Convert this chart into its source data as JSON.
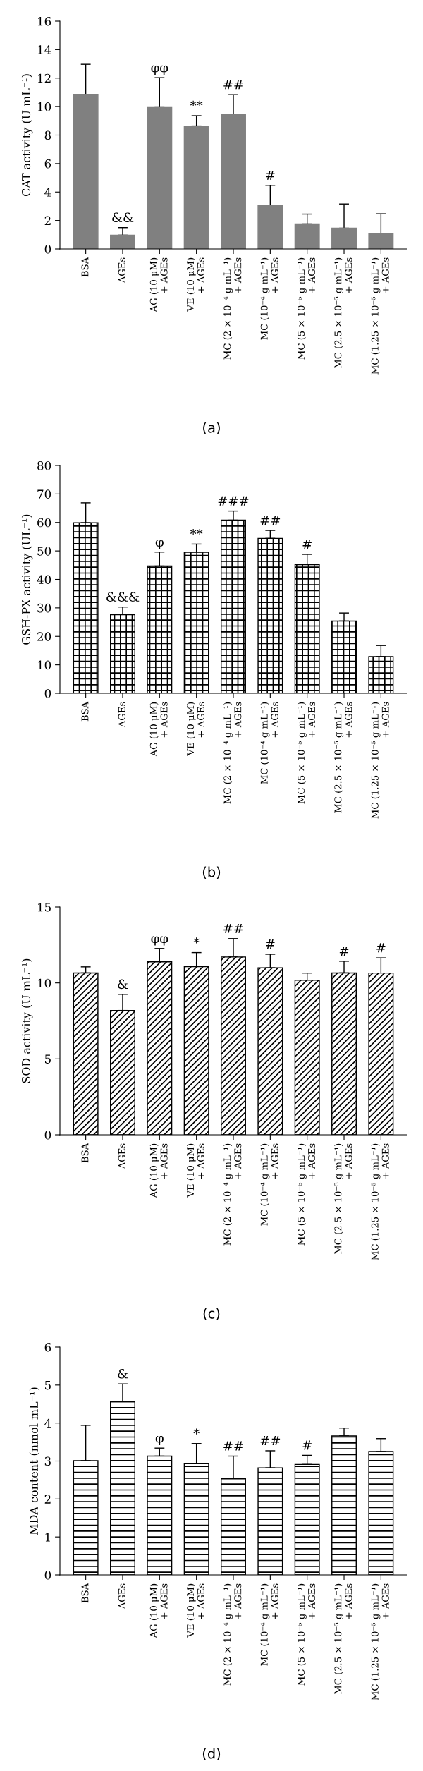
{
  "chart_data": [
    {
      "type": "bar",
      "title": "(a)",
      "ylabel": "CAT activity (U mL⁻¹)",
      "categories": [
        "BSA",
        "AGEs",
        "AG (10 μM)\n+ AGEs",
        "VE (10 μM)\n+ AGEs",
        "MC (2 × 10⁻⁴ g mL⁻¹)\n+ AGEs",
        "MC (10⁻⁴ g mL⁻¹)\n+ AGEs",
        "MC (5 × 10⁻⁵ g mL⁻¹)\n+ AGEs",
        "MC (2.5 × 10⁻⁵ g mL⁻¹)\n+ AGEs",
        "MC (1.25 × 10⁻⁵ g mL⁻¹)\n+ AGEs"
      ],
      "values": [
        10.86,
        0.97,
        9.93,
        8.64,
        9.45,
        3.07,
        1.76,
        1.46,
        1.09
      ],
      "color": "#808080",
      "errors": [
        [
          10.86,
          12.97
        ],
        [
          0.97,
          1.5
        ],
        [
          9.93,
          12.03
        ],
        [
          8.64,
          9.36
        ],
        [
          9.45,
          10.84
        ],
        [
          3.07,
          4.47
        ],
        [
          1.76,
          2.45
        ],
        [
          1.46,
          3.16
        ],
        [
          1.09,
          2.47
        ]
      ],
      "ylim": [
        0,
        16
      ],
      "yticks": [
        0,
        2,
        4,
        6,
        8,
        10,
        12,
        14,
        16
      ],
      "grid": false,
      "legend": false,
      "annotations": [
        {
          "text": "&&",
          "x": "AGEs",
          "y": 1.5
        },
        {
          "text": "φφ",
          "x": "AG (10 μM)\n+ AGEs",
          "y": 12.03
        },
        {
          "text": "**",
          "x": "VE (10 μM)\n+ AGEs",
          "y": 9.36
        },
        {
          "text": "##",
          "x": "MC (2 × 10⁻⁴ g mL⁻¹)\n+ AGEs",
          "y": 10.84
        },
        {
          "text": "#",
          "x": "MC (10⁻⁴ g mL⁻¹)\n+ AGEs",
          "y": 4.47
        }
      ]
    },
    {
      "type": "bar",
      "title": "(b)",
      "ylabel": "GSH-PX activity (UL⁻¹)",
      "categories": [
        "BSA",
        "AGEs",
        "AG (10 μM)\n+ AGEs",
        "VE (10 μM)\n+ AGEs",
        "MC (2 × 10⁻⁴ g mL⁻¹)\n+ AGEs",
        "MC (10⁻⁴ g mL⁻¹)\n+ AGEs",
        "MC (5 × 10⁻⁵ g mL⁻¹)\n+ AGEs",
        "MC (2.5 × 10⁻⁵ g mL⁻¹)\n+ AGEs",
        "MC (1.25 × 10⁻⁵ g mL⁻¹)\n+ AGEs"
      ],
      "values": [
        59.9,
        27.6,
        44.7,
        49.5,
        60.8,
        54.4,
        45.2,
        25.4,
        12.9
      ],
      "color": "#000000",
      "errors": [
        [
          59.9,
          66.9
        ],
        [
          27.6,
          30.3
        ],
        [
          44.7,
          49.6
        ],
        [
          49.5,
          52.4
        ],
        [
          60.8,
          64.0
        ],
        [
          54.4,
          57.2
        ],
        [
          45.2,
          48.8
        ],
        [
          25.4,
          28.2
        ],
        [
          12.9,
          16.8
        ]
      ],
      "ylim": [
        0,
        80
      ],
      "yticks": [
        0,
        10,
        20,
        30,
        40,
        50,
        60,
        70,
        80
      ],
      "grid": false,
      "legend": false,
      "annotations": [
        {
          "text": "&&&",
          "x": "AGEs",
          "y": 30.3
        },
        {
          "text": "φ",
          "x": "AG (10 μM)\n+ AGEs",
          "y": 49.6
        },
        {
          "text": "**",
          "x": "VE (10 μM)\n+ AGEs",
          "y": 52.4
        },
        {
          "text": "###",
          "x": "MC (2 × 10⁻⁴ g mL⁻¹)\n+ AGEs",
          "y": 64.0
        },
        {
          "text": "##",
          "x": "MC (10⁻⁴ g mL⁻¹)\n+ AGEs",
          "y": 57.2
        },
        {
          "text": "#",
          "x": "MC (5 × 10⁻⁵ g mL⁻¹)\n+ AGEs",
          "y": 48.8
        }
      ]
    },
    {
      "type": "bar",
      "title": "(c)",
      "ylabel": "SOD activity (U mL⁻¹)",
      "categories": [
        "BSA",
        "AGEs",
        "AG (10 μM)\n+ AGEs",
        "VE (10 μM)\n+ AGEs",
        "MC (2 × 10⁻⁴ g mL⁻¹)\n+ AGEs",
        "MC (10⁻⁴ g mL⁻¹)\n+ AGEs",
        "MC (5 × 10⁻⁵ g mL⁻¹)\n+ AGEs",
        "MC (2.5 × 10⁻⁵ g mL⁻¹)\n+ AGEs",
        "MC (1.25 × 10⁻⁵ g mL⁻¹)\n+ AGEs"
      ],
      "values": [
        10.66,
        8.19,
        11.39,
        11.07,
        11.71,
        11.0,
        10.18,
        10.66,
        10.65
      ],
      "color": "#000000",
      "errors": [
        [
          10.66,
          11.06
        ],
        [
          8.19,
          9.25
        ],
        [
          11.39,
          12.27
        ],
        [
          11.07,
          12.0
        ],
        [
          11.71,
          12.92
        ],
        [
          11.0,
          11.89
        ],
        [
          10.18,
          10.65
        ],
        [
          10.66,
          11.43
        ],
        [
          10.65,
          11.65
        ]
      ],
      "ylim": [
        0,
        15
      ],
      "yticks": [
        0,
        5,
        10,
        15
      ],
      "grid": false,
      "legend": false,
      "annotations": [
        {
          "text": "&",
          "x": "AGEs",
          "y": 9.25
        },
        {
          "text": "φφ",
          "x": "AG (10 μM)\n+ AGEs",
          "y": 12.27
        },
        {
          "text": "*",
          "x": "VE (10 μM)\n+ AGEs",
          "y": 12.0
        },
        {
          "text": "##",
          "x": "MC (2 × 10⁻⁴ g mL⁻¹)\n+ AGEs",
          "y": 12.92
        },
        {
          "text": "#",
          "x": "MC (10⁻⁴ g mL⁻¹)\n+ AGEs",
          "y": 11.89
        },
        {
          "text": "#",
          "x": "MC (2.5 × 10⁻⁵ g mL⁻¹)\n+ AGEs",
          "y": 11.43
        },
        {
          "text": "#",
          "x": "MC (1.25 × 10⁻⁵ g mL⁻¹)\n+ AGEs",
          "y": 11.65
        }
      ]
    },
    {
      "type": "bar",
      "title": "(d)",
      "ylabel": "MDA content (nmol mL⁻¹)",
      "categories": [
        "BSA",
        "AGEs",
        "AG (10 μM)\n+ AGEs",
        "VE (10 μM)\n+ AGEs",
        "MC (2 × 10⁻⁴ g mL⁻¹)\n+ AGEs",
        "MC (10⁻⁴ g mL⁻¹)\n+ AGEs",
        "MC (5 × 10⁻⁵ g mL⁻¹)\n+ AGEs",
        "MC (2.5 × 10⁻⁵ g mL⁻¹)\n+ AGEs",
        "MC (1.25 × 10⁻⁵ g mL⁻¹)\n+ AGEs"
      ],
      "values": [
        3.01,
        4.56,
        3.13,
        2.93,
        2.53,
        2.82,
        2.91,
        3.66,
        3.25
      ],
      "color": "#000000",
      "errors": [
        [
          3.01,
          3.94
        ],
        [
          4.56,
          5.03
        ],
        [
          3.13,
          3.34
        ],
        [
          2.93,
          3.46
        ],
        [
          2.53,
          3.13
        ],
        [
          2.82,
          3.27
        ],
        [
          2.91,
          3.15
        ],
        [
          3.66,
          3.87
        ],
        [
          3.25,
          3.59
        ]
      ],
      "ylim": [
        0,
        6
      ],
      "yticks": [
        0,
        1,
        2,
        3,
        4,
        5,
        6
      ],
      "grid": false,
      "legend": false,
      "annotations": [
        {
          "text": "&",
          "x": "AGEs",
          "y": 5.03
        },
        {
          "text": "φ",
          "x": "AG (10 μM)\n+ AGEs",
          "y": 3.34
        },
        {
          "text": "*",
          "x": "VE (10 μM)\n+ AGEs",
          "y": 3.46
        },
        {
          "text": "##",
          "x": "MC (2 × 10⁻⁴ g mL⁻¹)\n+ AGEs",
          "y": 3.13
        },
        {
          "text": "##",
          "x": "MC (10⁻⁴ g mL⁻¹)\n+ AGEs",
          "y": 3.27
        },
        {
          "text": "#",
          "x": "MC (5 × 10⁻⁵ g mL⁻¹)\n+ AGEs",
          "y": 3.15
        }
      ]
    }
  ]
}
